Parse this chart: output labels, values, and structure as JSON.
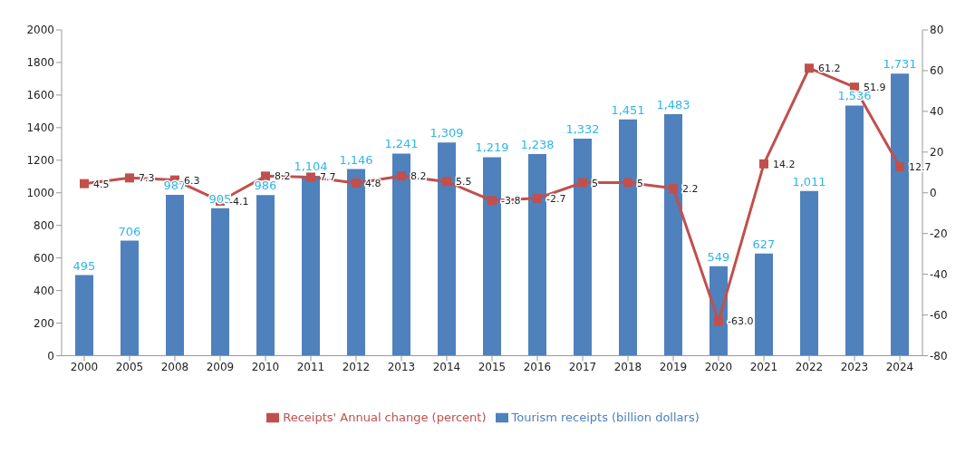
{
  "chart_data": {
    "type": "bar",
    "categories": [
      "2000",
      "2005",
      "2008",
      "2009",
      "2010",
      "2011",
      "2012",
      "2013",
      "2014",
      "2015",
      "2016",
      "2017",
      "2018",
      "2019",
      "2020",
      "2021",
      "2022",
      "2023",
      "2024"
    ],
    "series": [
      {
        "name": "Tourism receipts (billion dollars)",
        "color": "#4f81bd",
        "values": [
          495,
          706,
          987,
          905,
          986,
          1104,
          1146,
          1241,
          1309,
          1219,
          1238,
          1332,
          1451,
          1483,
          549,
          627,
          1011,
          1536,
          1731
        ],
        "value_labels": [
          "495",
          "706",
          "987",
          "905",
          "986",
          "1,104",
          "1,146",
          "1,241",
          "1,309",
          "1,219",
          "1,238",
          "1,332",
          "1,451",
          "1,483",
          "549",
          "627",
          "1,011",
          "1,536",
          "1,731"
        ]
      },
      {
        "name": "Receipts' Annual change (percent)",
        "type": "line",
        "axis": "y2",
        "color": "#c0504d",
        "values": [
          4.5,
          7.3,
          6.3,
          -4.1,
          8.2,
          7.7,
          4.8,
          8.2,
          5.5,
          -3.8,
          -2.7,
          5,
          5,
          2.2,
          -63.0,
          14.2,
          61.2,
          51.9,
          12.7
        ],
        "value_labels": [
          "4.5",
          "7.3",
          "6.3",
          "-4.1",
          "8.2",
          "7.7",
          "4.8",
          "8.2",
          "5.5",
          "-3.8",
          "-2.7",
          "5",
          "5",
          "2.2",
          "-63.0",
          "14.2",
          "61.2",
          "51.9",
          "12.7"
        ]
      }
    ],
    "ylim": [
      0,
      2000
    ],
    "yticks": [
      0,
      200,
      400,
      600,
      800,
      1000,
      1200,
      1400,
      1600,
      1800,
      2000
    ],
    "y2lim": [
      -80,
      80
    ],
    "y2ticks": [
      -80,
      -60,
      -40,
      -20,
      0,
      20,
      40,
      60,
      80
    ],
    "marker": "square",
    "legend": "bottom",
    "grid": false
  }
}
